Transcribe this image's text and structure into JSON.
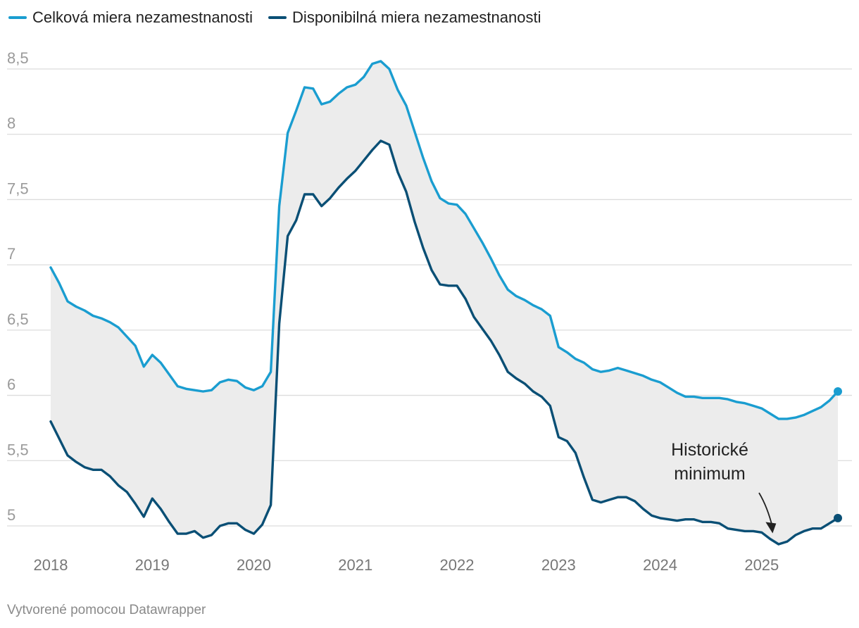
{
  "chart_data": {
    "type": "line",
    "title": "",
    "xlabel": "",
    "ylabel": "",
    "ylim": [
      4.8,
      8.6
    ],
    "yticks": [
      5,
      5.5,
      6,
      6.5,
      7,
      7.5,
      8,
      8.5
    ],
    "ytick_labels": [
      "5",
      "5,5",
      "6",
      "6,5",
      "7",
      "7,5",
      "8",
      "8,5"
    ],
    "xticks": [
      2018,
      2019,
      2020,
      2021,
      2022,
      2023,
      2024,
      2025
    ],
    "xtick_labels": [
      "2018",
      "2019",
      "2020",
      "2021",
      "2022",
      "2023",
      "2024",
      "2025"
    ],
    "x_start": 2018.0,
    "x_step": 0.08333333,
    "grid": true,
    "legend_position": "top-left",
    "fill_between": true,
    "series": [
      {
        "name": "Celková miera nezamestnanosti",
        "color": "#1a9dd0",
        "values": [
          6.98,
          6.86,
          6.72,
          6.68,
          6.65,
          6.61,
          6.59,
          6.56,
          6.52,
          6.45,
          6.38,
          6.22,
          6.31,
          6.25,
          6.16,
          6.07,
          6.05,
          6.04,
          6.03,
          6.04,
          6.1,
          6.12,
          6.11,
          6.06,
          6.04,
          6.07,
          6.18,
          7.45,
          8.01,
          8.18,
          8.36,
          8.35,
          8.23,
          8.25,
          8.31,
          8.36,
          8.38,
          8.44,
          8.54,
          8.56,
          8.5,
          8.34,
          8.22,
          8.02,
          7.82,
          7.64,
          7.51,
          7.47,
          7.46,
          7.39,
          7.28,
          7.17,
          7.05,
          6.92,
          6.81,
          6.76,
          6.73,
          6.69,
          6.66,
          6.61,
          6.37,
          6.33,
          6.28,
          6.25,
          6.2,
          6.18,
          6.19,
          6.21,
          6.19,
          6.17,
          6.15,
          6.12,
          6.1,
          6.06,
          6.02,
          5.99,
          5.99,
          5.98,
          5.98,
          5.98,
          5.97,
          5.95,
          5.94,
          5.92,
          5.9,
          5.86,
          5.82,
          5.82,
          5.83,
          5.85,
          5.88,
          5.91,
          5.96,
          6.03
        ]
      },
      {
        "name": "Disponibilná miera nezamestnanosti",
        "color": "#0a4f75",
        "values": [
          5.8,
          5.67,
          5.54,
          5.49,
          5.45,
          5.43,
          5.43,
          5.38,
          5.31,
          5.26,
          5.17,
          5.07,
          5.21,
          5.13,
          5.03,
          4.94,
          4.94,
          4.96,
          4.91,
          4.93,
          5.0,
          5.02,
          5.02,
          4.97,
          4.94,
          5.01,
          5.16,
          6.55,
          7.22,
          7.34,
          7.54,
          7.54,
          7.45,
          7.51,
          7.59,
          7.66,
          7.72,
          7.8,
          7.88,
          7.95,
          7.92,
          7.71,
          7.56,
          7.33,
          7.13,
          6.96,
          6.85,
          6.84,
          6.84,
          6.74,
          6.6,
          6.51,
          6.42,
          6.31,
          6.18,
          6.13,
          6.09,
          6.03,
          5.99,
          5.92,
          5.68,
          5.65,
          5.56,
          5.37,
          5.2,
          5.18,
          5.2,
          5.22,
          5.22,
          5.19,
          5.13,
          5.08,
          5.06,
          5.05,
          5.04,
          5.05,
          5.05,
          5.03,
          5.03,
          5.02,
          4.98,
          4.97,
          4.96,
          4.96,
          4.95,
          4.9,
          4.86,
          4.88,
          4.93,
          4.96,
          4.98,
          4.98,
          5.02,
          5.06
        ]
      }
    ],
    "annotations": [
      {
        "line1": "Historické",
        "line2": "minimum",
        "target_x": 2025.08,
        "target_y": 4.9
      }
    ]
  },
  "legend": {
    "items": [
      {
        "label": "Celková miera nezamestnanosti",
        "color": "#1a9dd0"
      },
      {
        "label": "Disponibilná miera nezamestnanosti",
        "color": "#0a4f75"
      }
    ]
  },
  "footer": {
    "credit": "Vytvorené pomocou Datawrapper"
  },
  "colors": {
    "fill": "#ececec",
    "grid": "#dcdcdc"
  }
}
